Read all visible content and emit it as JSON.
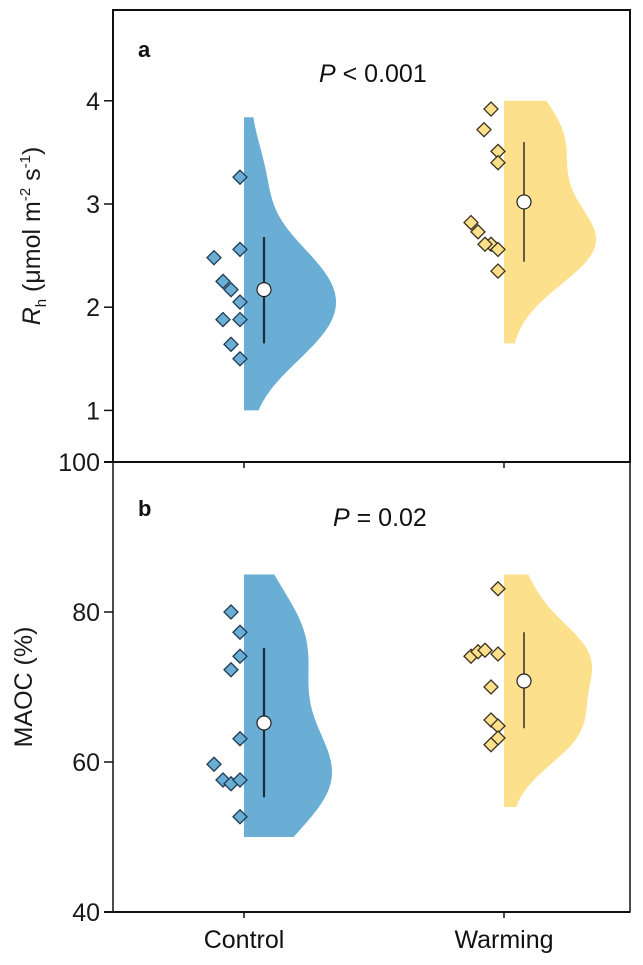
{
  "chart_data": [
    {
      "type": "violin",
      "panel_label": "a",
      "annotation": {
        "italic": "P",
        "text": " < 0.001"
      },
      "ylabel": {
        "main": "R",
        "sub": "h",
        "unit": " (μmol m",
        "sup1": "-2",
        "mid": " s",
        "sup2": "-1",
        "close": ")"
      },
      "ylim": [
        0.5,
        4.87
      ],
      "yticks": [
        1,
        2,
        3,
        4
      ],
      "ytick_labels": [
        "1",
        "2",
        "3",
        "4"
      ],
      "categories": [
        "Control",
        "Warming"
      ],
      "grid": false,
      "series": [
        {
          "name": "Control",
          "color": "#6aaed6",
          "points": [
            3.26,
            2.56,
            2.48,
            2.25,
            2.17,
            2.05,
            1.88,
            1.88,
            1.64,
            1.5
          ],
          "mean": 2.17,
          "sd_range": [
            1.65,
            2.68
          ],
          "violin_range": [
            1.0,
            3.84
          ]
        },
        {
          "name": "Warming",
          "color": "#fde08b",
          "points": [
            3.92,
            3.72,
            3.51,
            3.4,
            2.82,
            2.73,
            2.61,
            2.61,
            2.56,
            2.35
          ],
          "mean": 3.02,
          "sd_range": [
            2.44,
            3.6
          ],
          "violin_range": [
            1.65,
            4.0
          ]
        }
      ]
    },
    {
      "type": "violin",
      "panel_label": "b",
      "annotation": {
        "italic": "P",
        "text": " = 0.02"
      },
      "ylabel": {
        "text": "MAOC (%)"
      },
      "ylim": [
        40,
        100
      ],
      "yticks": [
        40,
        60,
        80,
        100
      ],
      "ytick_labels": [
        "40",
        "60",
        "80",
        "100"
      ],
      "categories": [
        "Control",
        "Warming"
      ],
      "grid": false,
      "series": [
        {
          "name": "Control",
          "color": "#6aaed6",
          "points": [
            80.0,
            77.3,
            74.1,
            72.3,
            63.1,
            59.7,
            57.6,
            57.1,
            57.6,
            52.7
          ],
          "mean": 65.2,
          "sd_range": [
            55.3,
            75.2
          ],
          "violin_range": [
            50,
            85
          ]
        },
        {
          "name": "Warming",
          "color": "#fde08b",
          "points": [
            83.1,
            74.1,
            74.7,
            74.9,
            74.4,
            70.0,
            65.6,
            64.8,
            63.2,
            62.3
          ],
          "mean": 70.8,
          "sd_range": [
            64.5,
            77.3
          ],
          "violin_range": [
            54,
            85
          ]
        }
      ]
    }
  ]
}
